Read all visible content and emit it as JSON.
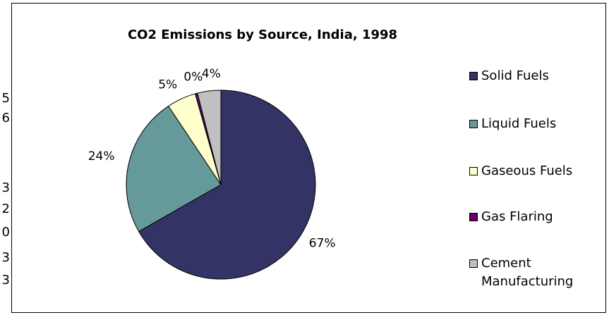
{
  "gutter_labels": [
    "5",
    "6",
    "3",
    "2",
    "0",
    "3",
    "3"
  ],
  "chart_data": {
    "type": "pie",
    "title": "CO2 Emissions by Source, India, 1998",
    "slices": [
      {
        "name": "Solid Fuels",
        "value": 67,
        "label": "67%",
        "color": "#333366"
      },
      {
        "name": "Liquid Fuels",
        "value": 24,
        "label": "24%",
        "color": "#669999"
      },
      {
        "name": "Gaseous Fuels",
        "value": 5,
        "label": "5%",
        "color": "#ffffcc"
      },
      {
        "name": "Gas Flaring",
        "value": 0.4,
        "label": "0%",
        "color": "#660066"
      },
      {
        "name": "Cement Manufacturing",
        "value": 4,
        "label": "4%",
        "color": "#c0c0c0"
      }
    ],
    "legend_position": "right",
    "legend_labels": [
      "Solid Fuels",
      "Liquid Fuels",
      "Gaseous Fuels",
      "Gas Flaring",
      "Cement Manufacturing"
    ]
  }
}
